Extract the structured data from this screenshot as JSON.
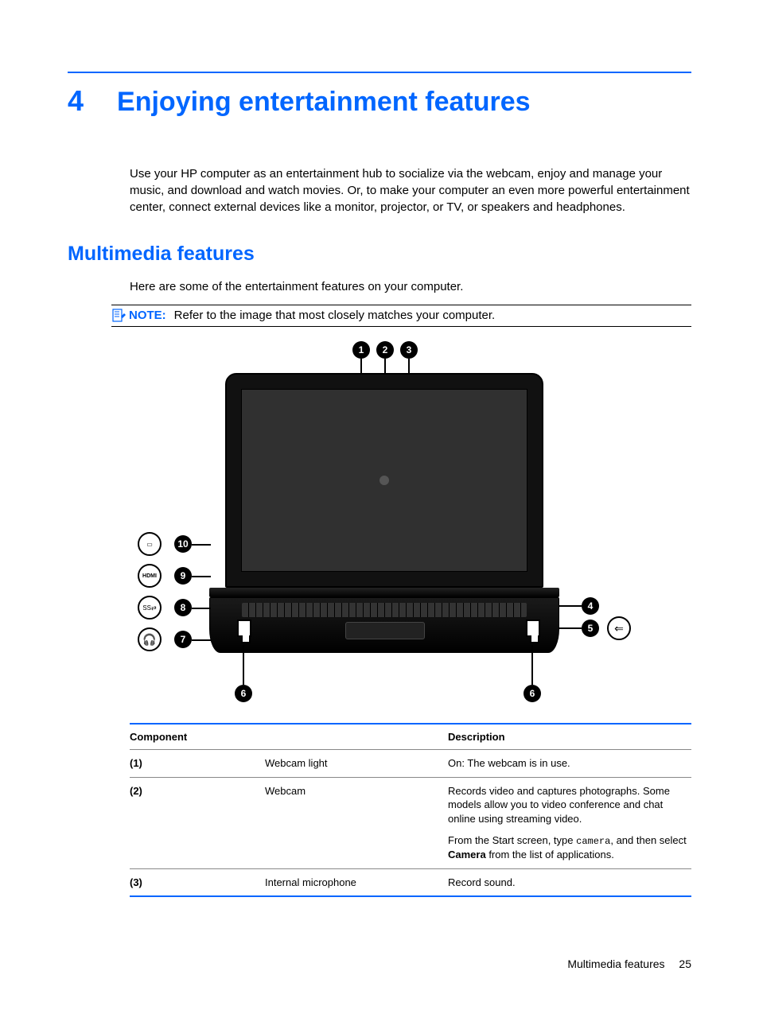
{
  "chapter": {
    "number": "4",
    "title": "Enjoying entertainment features"
  },
  "intro": "Use your HP computer as an entertainment hub to socialize via the webcam, enjoy and manage your music, and download and watch movies. Or, to make your computer an even more powerful entertainment center, connect external devices like a monitor, projector, or TV, or speakers and headphones.",
  "section": {
    "title": "Multimedia features",
    "intro": "Here are some of the entertainment features on your computer.",
    "note_label": "NOTE:",
    "note_text": "Refer to the image that most closely matches your computer."
  },
  "diagram": {
    "callouts": [
      "1",
      "2",
      "3",
      "4",
      "5",
      "6",
      "6",
      "7",
      "8",
      "9",
      "10"
    ],
    "port_labels": {
      "p10": "▭",
      "p9": "HDMI",
      "p8": "SS⇄",
      "p7": "🎧",
      "p5": "⇐"
    }
  },
  "table": {
    "headers": {
      "component": "Component",
      "description": "Description"
    },
    "rows": [
      {
        "num": "(1)",
        "name": "Webcam light",
        "desc": [
          {
            "text": "On: The webcam is in use."
          }
        ]
      },
      {
        "num": "(2)",
        "name": "Webcam",
        "desc": [
          {
            "text": "Records video and captures photographs. Some models allow you to video conference and chat online using streaming video."
          },
          {
            "pre": "From the Start screen, type ",
            "code": "camera",
            "mid": ", and then select ",
            "bold": "Camera",
            "post": " from the list of applications."
          }
        ]
      },
      {
        "num": "(3)",
        "name": "Internal microphone",
        "desc": [
          {
            "text": "Record sound."
          }
        ]
      }
    ]
  },
  "footer": {
    "section": "Multimedia features",
    "page": "25"
  },
  "colors": {
    "accent": "#0066ff",
    "text": "#000000"
  }
}
